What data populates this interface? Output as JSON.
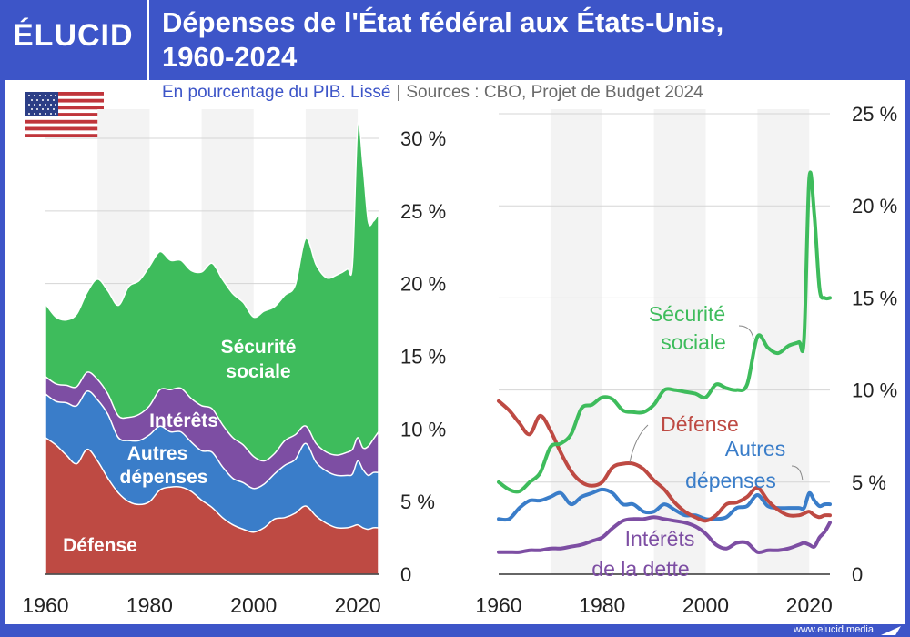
{
  "header": {
    "logo": "ÉLUCID",
    "title_line1": "Dépenses de l'État fédéral aux États-Unis,",
    "title_line2": "1960-2024"
  },
  "subtitle": {
    "main": "En pourcentage du PIB. Lissé",
    "separator": "|",
    "sources": "Sources : CBO, Projet de Budget 2024"
  },
  "footer": {
    "site": "www.elucid.media"
  },
  "flag": {
    "icon": "us-flag-icon"
  },
  "colors": {
    "background": "#3d55c8",
    "securite": "#3ebc5c",
    "interets": "#7d4ea3",
    "autres": "#3a7dc9",
    "defense": "#be4a43",
    "stripe": "#f3f3f3"
  },
  "chart_data": [
    {
      "type": "area",
      "stacked": true,
      "x": [
        1960,
        1962,
        1964,
        1966,
        1968,
        1970,
        1972,
        1974,
        1976,
        1978,
        1980,
        1982,
        1984,
        1986,
        1988,
        1990,
        1992,
        1994,
        1996,
        1998,
        2000,
        2002,
        2004,
        2006,
        2008,
        2010,
        2012,
        2014,
        2016,
        2018,
        2019,
        2020,
        2021,
        2022,
        2023,
        2024
      ],
      "series": [
        {
          "name": "Défense",
          "values": [
            9.4,
            8.9,
            8.2,
            7.6,
            8.6,
            7.8,
            6.6,
            5.6,
            5.0,
            4.8,
            5.0,
            5.8,
            6.0,
            6.0,
            5.7,
            5.1,
            4.6,
            3.9,
            3.4,
            3.1,
            2.9,
            3.2,
            3.8,
            3.9,
            4.2,
            4.7,
            4.0,
            3.5,
            3.2,
            3.2,
            3.3,
            3.4,
            3.2,
            3.1,
            3.2,
            3.2
          ]
        },
        {
          "name": "Autres dépenses",
          "values": [
            3.0,
            3.0,
            3.6,
            4.0,
            4.0,
            4.2,
            4.4,
            3.8,
            4.2,
            4.4,
            4.6,
            4.4,
            3.8,
            3.8,
            3.4,
            3.4,
            3.8,
            3.5,
            3.2,
            3.2,
            3.0,
            3.0,
            3.1,
            3.6,
            3.7,
            4.3,
            3.7,
            3.6,
            3.6,
            3.6,
            3.6,
            4.4,
            4.0,
            3.7,
            3.8,
            3.8
          ]
        },
        {
          "name": "Intérêts",
          "values": [
            1.2,
            1.2,
            1.2,
            1.3,
            1.3,
            1.4,
            1.4,
            1.5,
            1.6,
            1.8,
            2.0,
            2.5,
            2.9,
            3.0,
            3.0,
            3.1,
            3.0,
            2.9,
            2.8,
            2.6,
            2.2,
            1.6,
            1.4,
            1.7,
            1.7,
            1.2,
            1.3,
            1.3,
            1.4,
            1.6,
            1.7,
            1.6,
            1.5,
            2.0,
            2.3,
            2.8
          ]
        },
        {
          "name": "Sécurité sociale",
          "values": [
            5.0,
            4.6,
            4.5,
            5.0,
            5.5,
            6.9,
            7.1,
            7.6,
            9.0,
            9.2,
            9.6,
            9.5,
            8.9,
            8.8,
            8.8,
            9.2,
            10.0,
            10.0,
            9.9,
            9.8,
            9.6,
            10.3,
            10.1,
            10.0,
            10.3,
            12.9,
            12.3,
            12.0,
            12.4,
            12.6,
            12.8,
            21.5,
            19.5,
            15.5,
            15.0,
            15.0
          ]
        }
      ],
      "ylim": [
        0,
        31
      ],
      "yticks": [
        0,
        5,
        10,
        15,
        20,
        25,
        30
      ],
      "ytick_labels": [
        "0",
        "5 %",
        "10 %",
        "15 %",
        "20 %",
        "25 %",
        "30 %"
      ],
      "xticks": [
        1960,
        1980,
        2000,
        2020
      ],
      "labels": {
        "securite": [
          "Sécurité",
          "sociale"
        ],
        "interets": "Intérêts",
        "autres": [
          "Autres",
          "dépenses"
        ],
        "defense": "Défense"
      }
    },
    {
      "type": "line",
      "x": [
        1960,
        1962,
        1964,
        1966,
        1968,
        1970,
        1972,
        1974,
        1976,
        1978,
        1980,
        1982,
        1984,
        1986,
        1988,
        1990,
        1992,
        1994,
        1996,
        1998,
        2000,
        2002,
        2004,
        2006,
        2008,
        2010,
        2012,
        2014,
        2016,
        2018,
        2019,
        2020,
        2021,
        2022,
        2023,
        2024
      ],
      "series": [
        {
          "name": "Sécurité sociale",
          "values": [
            5.0,
            4.6,
            4.5,
            5.0,
            5.5,
            6.9,
            7.1,
            7.6,
            9.0,
            9.2,
            9.6,
            9.5,
            8.9,
            8.8,
            8.8,
            9.2,
            10.0,
            10.0,
            9.9,
            9.8,
            9.6,
            10.3,
            10.1,
            10.0,
            10.3,
            12.9,
            12.3,
            12.0,
            12.4,
            12.6,
            12.8,
            21.5,
            19.5,
            15.5,
            15.0,
            15.0
          ]
        },
        {
          "name": "Défense",
          "values": [
            9.4,
            8.9,
            8.2,
            7.6,
            8.6,
            7.8,
            6.6,
            5.6,
            5.0,
            4.8,
            5.0,
            5.8,
            6.0,
            6.0,
            5.7,
            5.1,
            4.6,
            3.9,
            3.4,
            3.1,
            2.9,
            3.2,
            3.8,
            3.9,
            4.2,
            4.7,
            4.0,
            3.5,
            3.2,
            3.2,
            3.3,
            3.4,
            3.2,
            3.1,
            3.2,
            3.2
          ]
        },
        {
          "name": "Autres dépenses",
          "values": [
            3.0,
            3.0,
            3.6,
            4.0,
            4.0,
            4.2,
            4.4,
            3.8,
            4.2,
            4.4,
            4.6,
            4.4,
            3.8,
            3.8,
            3.4,
            3.4,
            3.8,
            3.5,
            3.2,
            3.2,
            3.0,
            3.0,
            3.1,
            3.6,
            3.7,
            4.3,
            3.7,
            3.6,
            3.6,
            3.6,
            3.6,
            4.4,
            4.0,
            3.7,
            3.8,
            3.8
          ]
        },
        {
          "name": "Intérêts de la dette",
          "values": [
            1.2,
            1.2,
            1.2,
            1.3,
            1.3,
            1.4,
            1.4,
            1.5,
            1.6,
            1.8,
            2.0,
            2.5,
            2.9,
            3.0,
            3.0,
            3.1,
            3.0,
            2.9,
            2.8,
            2.6,
            2.2,
            1.6,
            1.4,
            1.7,
            1.7,
            1.2,
            1.3,
            1.3,
            1.4,
            1.6,
            1.7,
            1.6,
            1.5,
            2.0,
            2.3,
            2.8
          ]
        }
      ],
      "ylim": [
        0,
        25
      ],
      "yticks": [
        0,
        5,
        10,
        15,
        20,
        25
      ],
      "ytick_labels": [
        "0",
        "5 %",
        "10 %",
        "15 %",
        "20 %",
        "25 %"
      ],
      "xticks": [
        1960,
        1980,
        2000,
        2020
      ],
      "labels": {
        "securite": [
          "Sécurité",
          "sociale"
        ],
        "defense": "Défense",
        "autres": [
          "Autres",
          "dépenses"
        ],
        "interets": [
          "Intérêts",
          "de la dette"
        ]
      }
    }
  ]
}
